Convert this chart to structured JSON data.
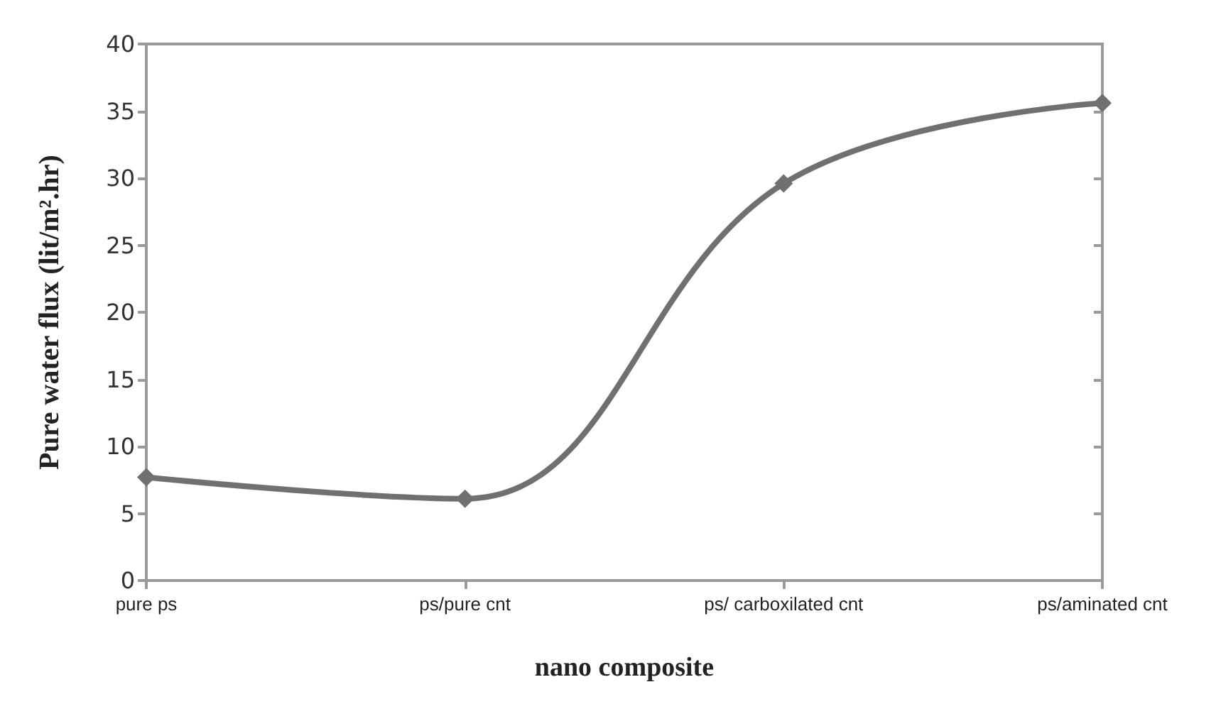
{
  "chart_data": {
    "type": "line",
    "xlabel": "nano composite",
    "ylabel": "Pure water flux (lit/m².hr)",
    "categories": [
      "pure ps",
      "ps/pure cnt",
      "ps/ carboxilated cnt",
      "ps/aminated cnt"
    ],
    "series": [
      {
        "color": "#707070",
        "values": [
          7.7,
          6.1,
          29.6,
          35.6
        ]
      }
    ],
    "ylim": [
      0,
      40
    ],
    "yticks": [
      0,
      5,
      10,
      15,
      20,
      25,
      30,
      35,
      40
    ],
    "grid": false,
    "marker": "diamond",
    "line_style": "solid"
  }
}
